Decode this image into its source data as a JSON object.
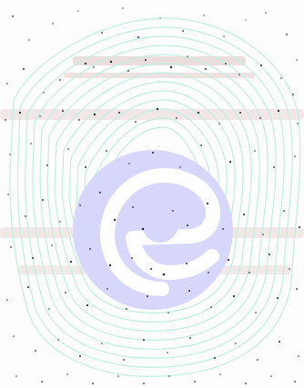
{
  "image": {
    "icon": "circular-e-logo-icon",
    "colors": {
      "background": "#fdfdfd",
      "contour_lines": "#bfeee0",
      "logo_disc": "#d7d6fb",
      "logo_mark": "#ffffff",
      "speckles": "#2a2430",
      "faint_text": "#c9a7a2"
    }
  }
}
